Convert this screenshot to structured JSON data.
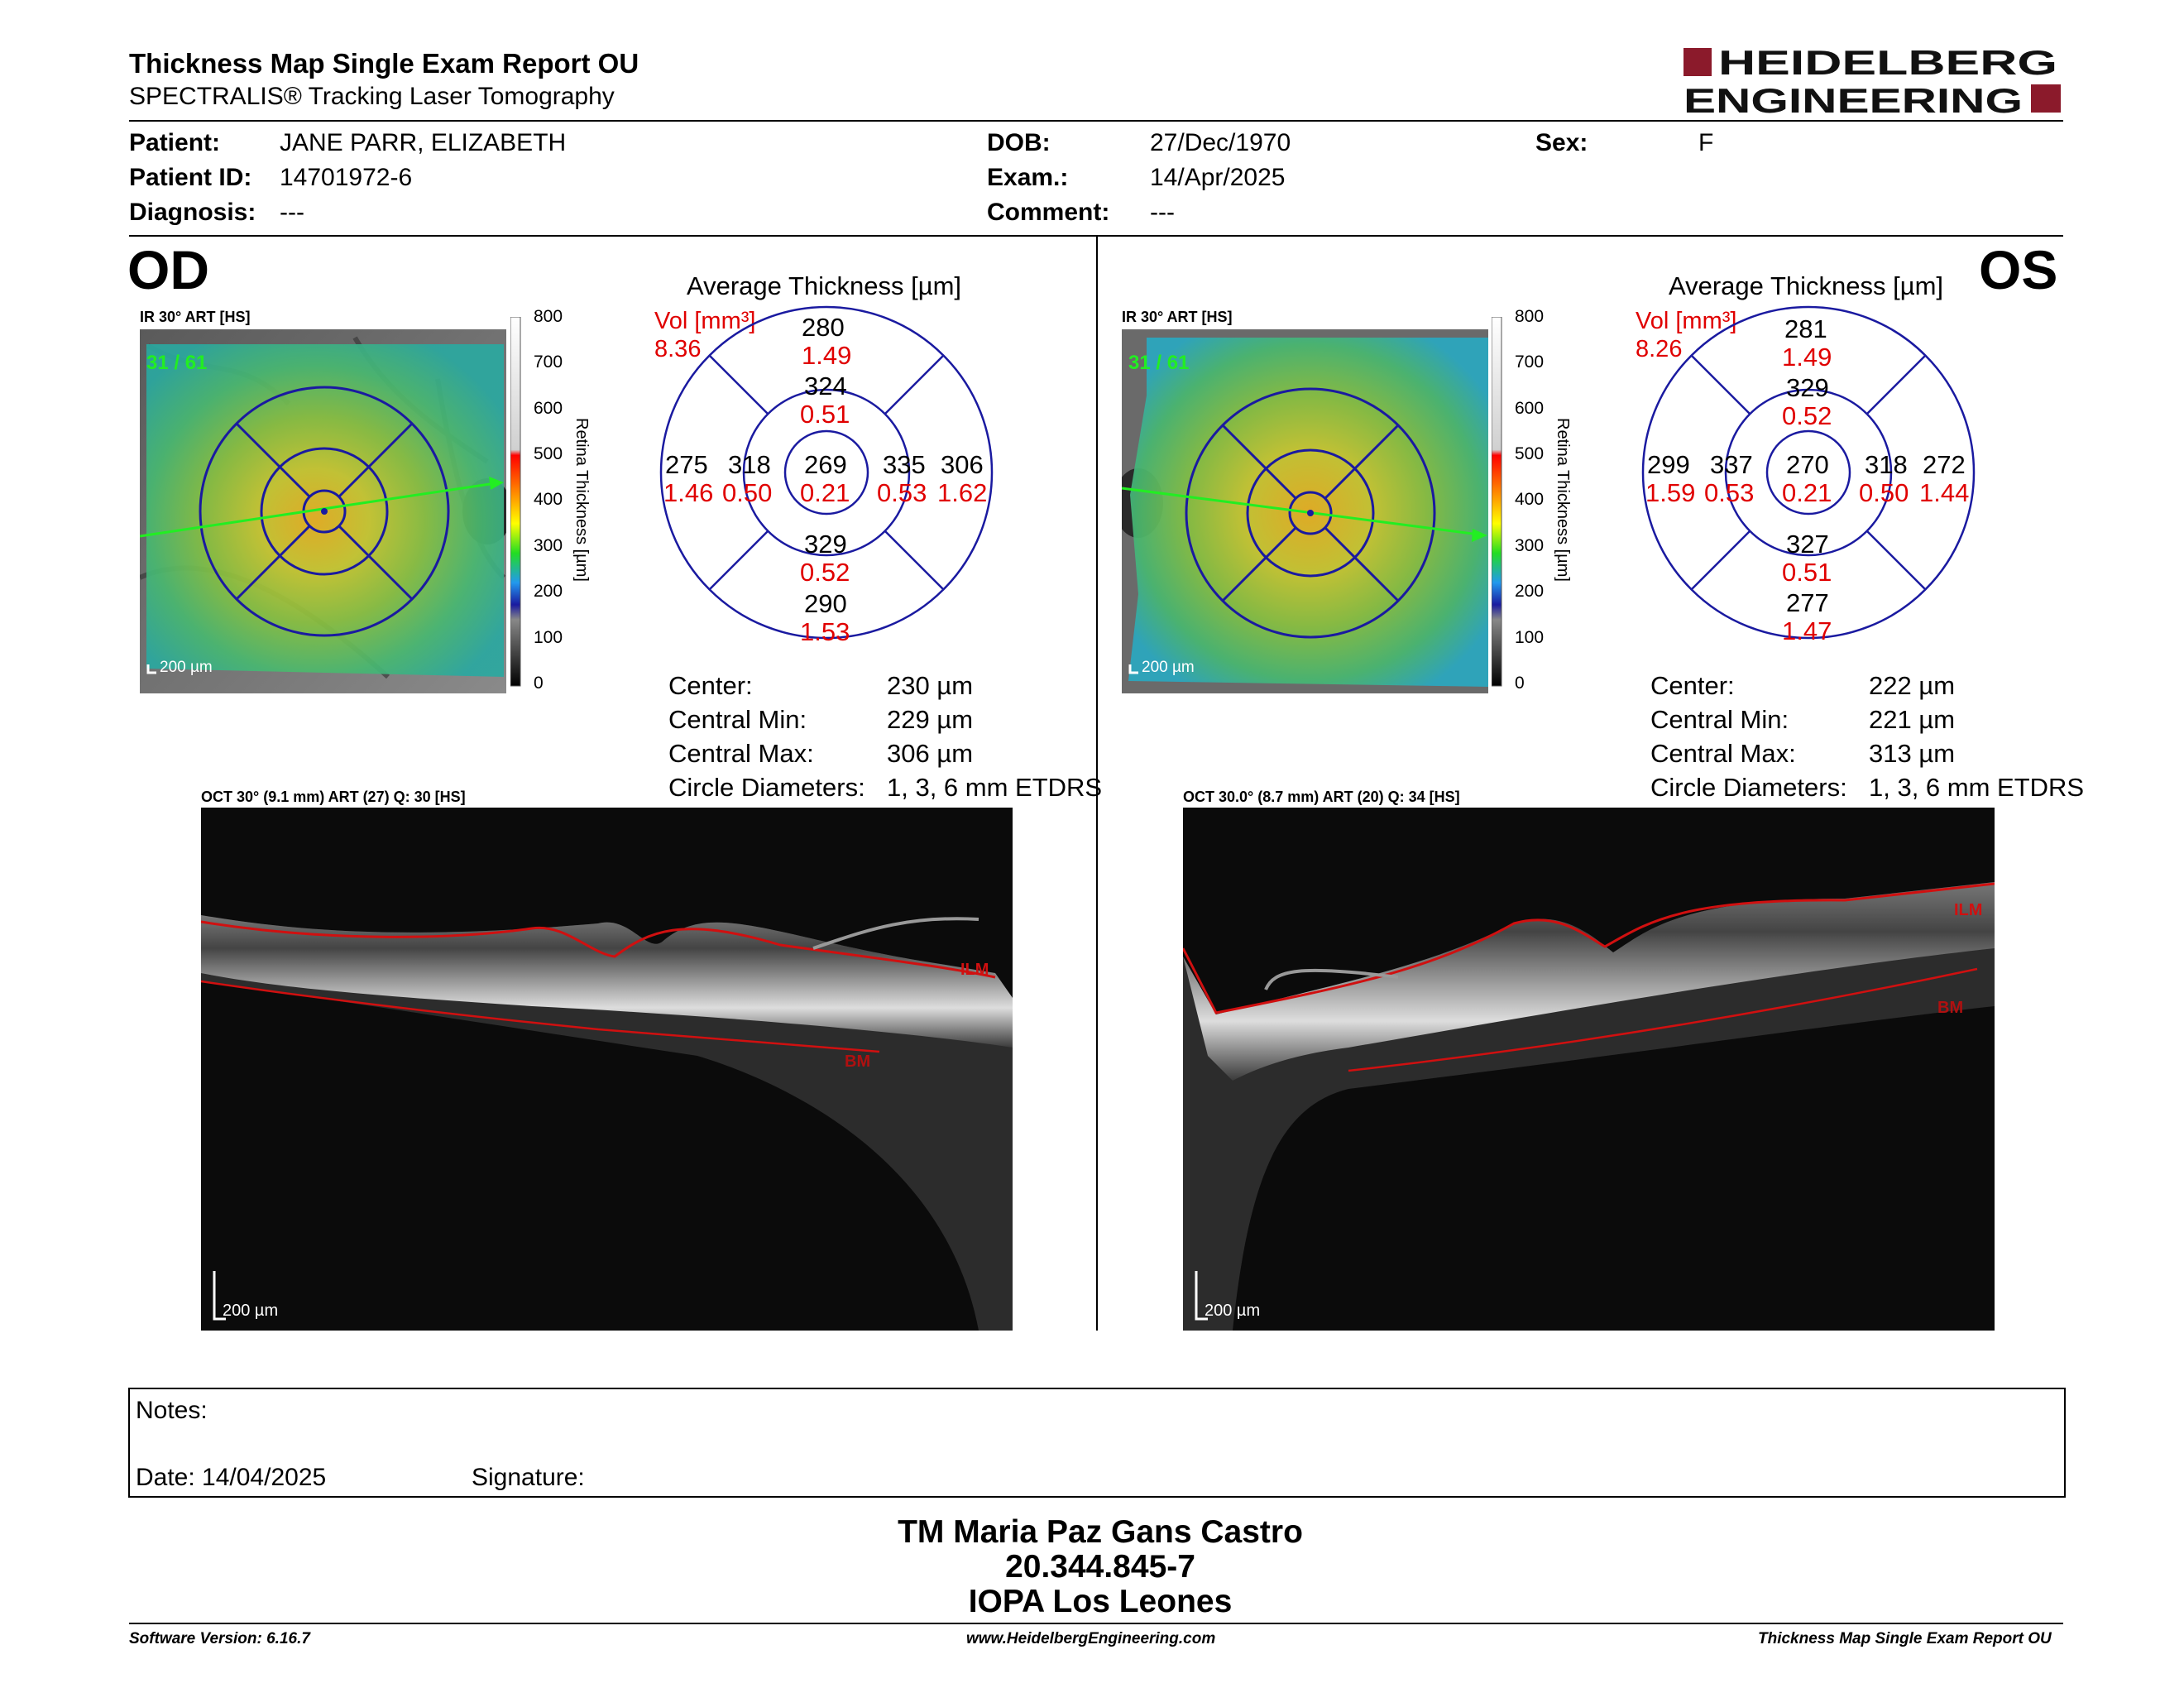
{
  "header": {
    "title": "Thickness Map Single Exam Report OU",
    "subtitle": "SPECTRALIS® Tracking Laser Tomography",
    "logo_line1": "HEIDELBERG",
    "logo_line2": "ENGINEERING",
    "logo_color": "#8b1a2b"
  },
  "patient": {
    "patient_label": "Patient:",
    "patient_value": "JANE PARR, ELIZABETH",
    "id_label": "Patient ID:",
    "id_value": "14701972-6",
    "diagnosis_label": "Diagnosis:",
    "diagnosis_value": "---",
    "dob_label": "DOB:",
    "dob_value": "27/Dec/1970",
    "exam_label": "Exam.:",
    "exam_value": "14/Apr/2025",
    "comment_label": "Comment:",
    "comment_value": "---",
    "sex_label": "Sex:",
    "sex_value": "F"
  },
  "od": {
    "eye": "OD",
    "ir_label": "IR 30° ART [HS]",
    "ir_counter": "31 / 61",
    "ir_scale": "200 µm",
    "scale_ticks": [
      "800",
      "700",
      "600",
      "500",
      "400",
      "300",
      "200",
      "100",
      "0"
    ],
    "scale_title": "Retina Thickness [µm]",
    "avg_title": "Average Thickness [µm]",
    "vol_label": "Vol [mm³]",
    "vol_total": "8.36",
    "grid": {
      "center_t": "269",
      "center_v": "0.21",
      "inner_sup_t": "324",
      "inner_sup_v": "0.51",
      "inner_inf_t": "329",
      "inner_inf_v": "0.52",
      "inner_left_t": "318",
      "inner_left_v": "0.50",
      "inner_right_t": "335",
      "inner_right_v": "0.53",
      "outer_sup_t": "280",
      "outer_sup_v": "1.49",
      "outer_inf_t": "290",
      "outer_inf_v": "1.53",
      "outer_left_t": "275",
      "outer_left_v": "1.46",
      "outer_right_t": "306",
      "outer_right_v": "1.62"
    },
    "stats": {
      "center_label": "Center:",
      "center_val": "230 µm",
      "min_label": "Central Min:",
      "min_val": "229 µm",
      "max_label": "Central Max:",
      "max_val": "306 µm",
      "diam_label": "Circle Diameters:",
      "diam_val": "1, 3, 6 mm ETDRS"
    },
    "oct_label": "OCT 30° (9.1 mm) ART (27) Q: 30 [HS]",
    "oct_scale": "200 µm",
    "ilm": "ILM",
    "bm": "BM"
  },
  "os": {
    "eye": "OS",
    "ir_label": "IR 30° ART [HS]",
    "ir_counter": "31 / 61",
    "ir_scale": "200 µm",
    "scale_ticks": [
      "800",
      "700",
      "600",
      "500",
      "400",
      "300",
      "200",
      "100",
      "0"
    ],
    "scale_title": "Retina Thickness [µm]",
    "avg_title": "Average Thickness [µm]",
    "vol_label": "Vol [mm³]",
    "vol_total": "8.26",
    "grid": {
      "center_t": "270",
      "center_v": "0.21",
      "inner_sup_t": "329",
      "inner_sup_v": "0.52",
      "inner_inf_t": "327",
      "inner_inf_v": "0.51",
      "inner_left_t": "337",
      "inner_left_v": "0.53",
      "inner_right_t": "318",
      "inner_right_v": "0.50",
      "outer_sup_t": "281",
      "outer_sup_v": "1.49",
      "outer_inf_t": "277",
      "outer_inf_v": "1.47",
      "outer_left_t": "299",
      "outer_left_v": "1.59",
      "outer_right_t": "272",
      "outer_right_v": "1.44"
    },
    "stats": {
      "center_label": "Center:",
      "center_val": "222 µm",
      "min_label": "Central Min:",
      "min_val": "221 µm",
      "max_label": "Central Max:",
      "max_val": "313 µm",
      "diam_label": "Circle Diameters:",
      "diam_val": "1, 3, 6 mm ETDRS"
    },
    "oct_label": "OCT 30.0° (8.7 mm) ART (20) Q: 34 [HS]",
    "oct_scale": "200 µm",
    "ilm": "ILM",
    "bm": "BM"
  },
  "notes": {
    "notes_label": "Notes:",
    "date_label": "Date: 14/04/2025",
    "signature_label": "Signature:"
  },
  "signatory": {
    "name": "TM Maria Paz Gans Castro",
    "rut": "20.344.845-7",
    "org": "IOPA Los Leones"
  },
  "footer": {
    "version": "Software Version: 6.16.7",
    "website": "www.HeidelbergEngineering.com",
    "report": "Thickness Map Single Exam Report OU"
  },
  "colors": {
    "grid_blue": "#1a1aa0",
    "volume_red": "#e00000",
    "layer_red": "#d01010",
    "counter_green": "#22ee22"
  }
}
